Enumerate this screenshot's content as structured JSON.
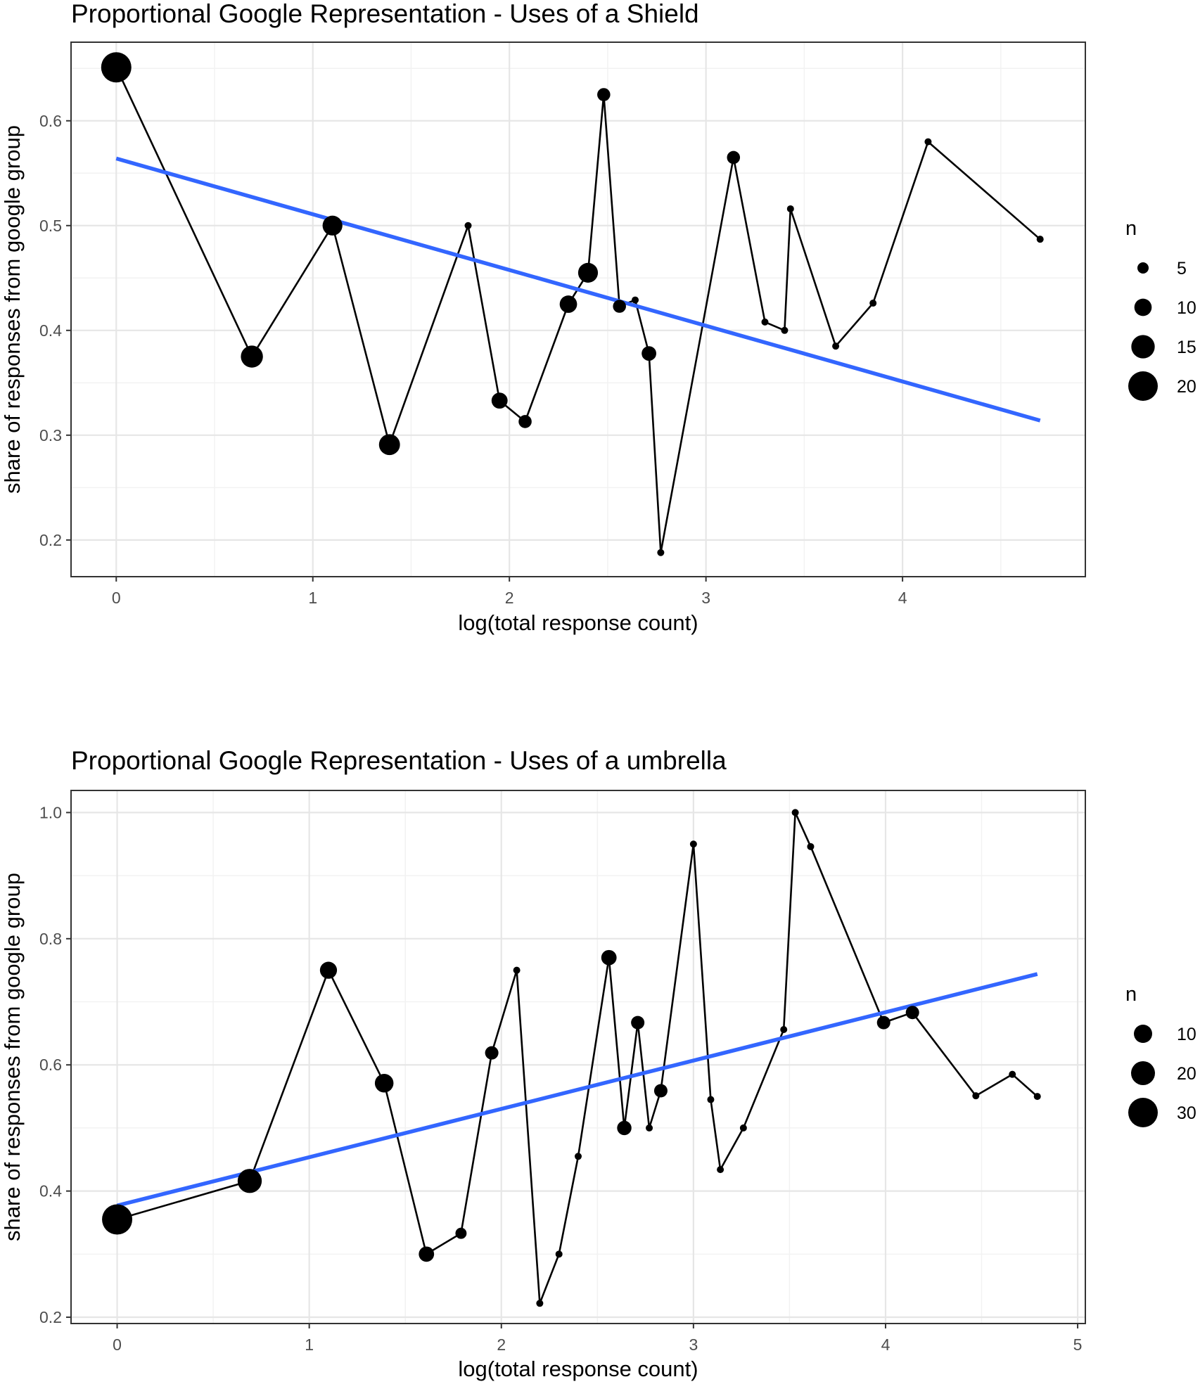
{
  "chart_data": [
    {
      "type": "scatter",
      "title": "Proportional Google Representation - Uses of a Shield",
      "xlabel": "log(total response count)",
      "ylabel": "share of responses from google group",
      "xlim": [
        -0.23,
        4.93
      ],
      "ylim": [
        0.165,
        0.675
      ],
      "x_ticks": [
        0,
        1,
        2,
        3,
        4
      ],
      "y_ticks": [
        0.2,
        0.3,
        0.4,
        0.5,
        0.6
      ],
      "x_tick_labels": [
        "0",
        "1",
        "2",
        "3",
        "4"
      ],
      "y_tick_labels": [
        "0.2",
        "0.3",
        "0.4",
        "0.5",
        "0.6"
      ],
      "grid": true,
      "series": [
        {
          "type": "line-points",
          "color": "#000000",
          "points": [
            {
              "x": 0.0,
              "y": 0.651,
              "n": 21
            },
            {
              "x": 0.69,
              "y": 0.375,
              "n": 12
            },
            {
              "x": 1.1,
              "y": 0.5,
              "n": 10
            },
            {
              "x": 1.39,
              "y": 0.291,
              "n": 11
            },
            {
              "x": 1.79,
              "y": 0.5,
              "n": 2
            },
            {
              "x": 1.95,
              "y": 0.333,
              "n": 7
            },
            {
              "x": 2.08,
              "y": 0.313,
              "n": 5
            },
            {
              "x": 2.3,
              "y": 0.425,
              "n": 8
            },
            {
              "x": 2.4,
              "y": 0.455,
              "n": 10
            },
            {
              "x": 2.48,
              "y": 0.625,
              "n": 5
            },
            {
              "x": 2.56,
              "y": 0.423,
              "n": 5
            },
            {
              "x": 2.64,
              "y": 0.429,
              "n": 2
            },
            {
              "x": 2.71,
              "y": 0.378,
              "n": 6
            },
            {
              "x": 2.77,
              "y": 0.188,
              "n": 2
            },
            {
              "x": 3.14,
              "y": 0.565,
              "n": 5
            },
            {
              "x": 3.3,
              "y": 0.408,
              "n": 2
            },
            {
              "x": 3.4,
              "y": 0.4,
              "n": 2
            },
            {
              "x": 3.43,
              "y": 0.516,
              "n": 2
            },
            {
              "x": 3.66,
              "y": 0.385,
              "n": 2
            },
            {
              "x": 3.85,
              "y": 0.426,
              "n": 2
            },
            {
              "x": 4.13,
              "y": 0.58,
              "n": 2
            },
            {
              "x": 4.7,
              "y": 0.487,
              "n": 2
            }
          ]
        },
        {
          "type": "trend",
          "color": "#3366ff",
          "points": [
            {
              "x": 0.0,
              "y": 0.564
            },
            {
              "x": 4.7,
              "y": 0.314
            }
          ]
        }
      ],
      "legend": {
        "title": "n",
        "placement": "right",
        "entries": [
          {
            "label": "5",
            "n": 5
          },
          {
            "label": "10",
            "n": 10
          },
          {
            "label": "15",
            "n": 15
          },
          {
            "label": "20",
            "n": 20
          }
        ]
      }
    },
    {
      "type": "scatter",
      "title": "Proportional Google Representation - Uses of a umbrella",
      "xlabel": "log(total response count)",
      "ylabel": "share of responses from google group",
      "xlim": [
        -0.24,
        5.04
      ],
      "ylim": [
        0.19,
        1.035
      ],
      "x_ticks": [
        0,
        1,
        2,
        3,
        4,
        5
      ],
      "y_ticks": [
        0.2,
        0.4,
        0.6,
        0.8,
        1.0
      ],
      "x_tick_labels": [
        "0",
        "1",
        "2",
        "3",
        "4",
        "5"
      ],
      "y_tick_labels": [
        "0.2",
        "0.4",
        "0.6",
        "0.8",
        "1.0"
      ],
      "grid": true,
      "series": [
        {
          "type": "line-points",
          "color": "#000000",
          "points": [
            {
              "x": 0.0,
              "y": 0.355,
              "n": 33
            },
            {
              "x": 0.69,
              "y": 0.416,
              "n": 22
            },
            {
              "x": 1.1,
              "y": 0.75,
              "n": 12
            },
            {
              "x": 1.39,
              "y": 0.571,
              "n": 14
            },
            {
              "x": 1.61,
              "y": 0.3,
              "n": 10
            },
            {
              "x": 1.79,
              "y": 0.333,
              "n": 6
            },
            {
              "x": 1.95,
              "y": 0.619,
              "n": 8
            },
            {
              "x": 2.08,
              "y": 0.75,
              "n": 3
            },
            {
              "x": 2.2,
              "y": 0.222,
              "n": 3
            },
            {
              "x": 2.3,
              "y": 0.3,
              "n": 3
            },
            {
              "x": 2.4,
              "y": 0.455,
              "n": 3
            },
            {
              "x": 2.56,
              "y": 0.77,
              "n": 10
            },
            {
              "x": 2.64,
              "y": 0.5,
              "n": 9
            },
            {
              "x": 2.71,
              "y": 0.667,
              "n": 8
            },
            {
              "x": 2.77,
              "y": 0.5,
              "n": 3
            },
            {
              "x": 2.83,
              "y": 0.559,
              "n": 8
            },
            {
              "x": 3.0,
              "y": 0.95,
              "n": 3
            },
            {
              "x": 3.09,
              "y": 0.545,
              "n": 3
            },
            {
              "x": 3.14,
              "y": 0.434,
              "n": 3
            },
            {
              "x": 3.26,
              "y": 0.5,
              "n": 3
            },
            {
              "x": 3.47,
              "y": 0.656,
              "n": 3
            },
            {
              "x": 3.53,
              "y": 1.0,
              "n": 3
            },
            {
              "x": 3.61,
              "y": 0.946,
              "n": 3
            },
            {
              "x": 3.99,
              "y": 0.667,
              "n": 8
            },
            {
              "x": 4.14,
              "y": 0.683,
              "n": 8
            },
            {
              "x": 4.47,
              "y": 0.551,
              "n": 3
            },
            {
              "x": 4.66,
              "y": 0.585,
              "n": 3
            },
            {
              "x": 4.79,
              "y": 0.55,
              "n": 3
            }
          ]
        },
        {
          "type": "trend",
          "color": "#3366ff",
          "points": [
            {
              "x": 0.0,
              "y": 0.377
            },
            {
              "x": 4.79,
              "y": 0.744
            }
          ]
        }
      ],
      "legend": {
        "title": "n",
        "placement": "right",
        "entries": [
          {
            "label": "10",
            "n": 10
          },
          {
            "label": "20",
            "n": 20
          },
          {
            "label": "30",
            "n": 30
          }
        ]
      }
    }
  ]
}
